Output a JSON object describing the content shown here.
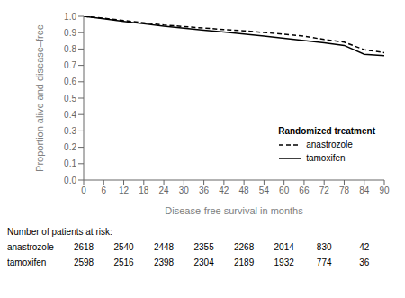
{
  "chart_data": {
    "type": "line",
    "xlabel": "Disease-free survival in months",
    "ylabel": "Proportion alive and disease–free",
    "x": [
      0,
      6,
      12,
      18,
      24,
      30,
      36,
      42,
      48,
      54,
      60,
      66,
      72,
      78,
      84,
      90
    ],
    "series": [
      {
        "name": "anastrozole",
        "color": "#000000",
        "line_style": "dashed",
        "values": [
          1.0,
          0.988,
          0.974,
          0.96,
          0.947,
          0.937,
          0.928,
          0.919,
          0.911,
          0.901,
          0.89,
          0.878,
          0.858,
          0.842,
          0.796,
          0.778
        ]
      },
      {
        "name": "tamoxifen",
        "color": "#000000",
        "line_style": "solid",
        "values": [
          1.0,
          0.985,
          0.969,
          0.954,
          0.939,
          0.927,
          0.915,
          0.904,
          0.892,
          0.879,
          0.865,
          0.851,
          0.838,
          0.822,
          0.768,
          0.76
        ]
      }
    ],
    "xlim": [
      0,
      90
    ],
    "ylim": [
      0.0,
      1.0
    ],
    "xticks": [
      0,
      6,
      12,
      18,
      24,
      30,
      36,
      42,
      48,
      54,
      60,
      66,
      72,
      78,
      84,
      90
    ],
    "yticks": [
      {
        "value": 0,
        "label": "0.0"
      },
      0.1,
      0.2,
      0.3,
      0.4,
      0.5,
      0.6,
      0.7,
      0.8,
      0.9,
      {
        "value": 1,
        "label": "1.0"
      }
    ],
    "grid": false,
    "legend": "lower right",
    "legend_title": "Randomized treatment",
    "risk_table": {
      "header": "Number of patients at risk:",
      "timepoints": [
        0,
        12,
        24,
        36,
        48,
        60,
        72,
        84
      ],
      "rows": [
        {
          "name": "anastrozole",
          "values": [
            2618,
            2540,
            2448,
            2355,
            2268,
            2014,
            830,
            42
          ]
        },
        {
          "name": "tamoxifen",
          "values": [
            2598,
            2516,
            2398,
            2304,
            2189,
            1932,
            774,
            36
          ]
        }
      ]
    }
  }
}
